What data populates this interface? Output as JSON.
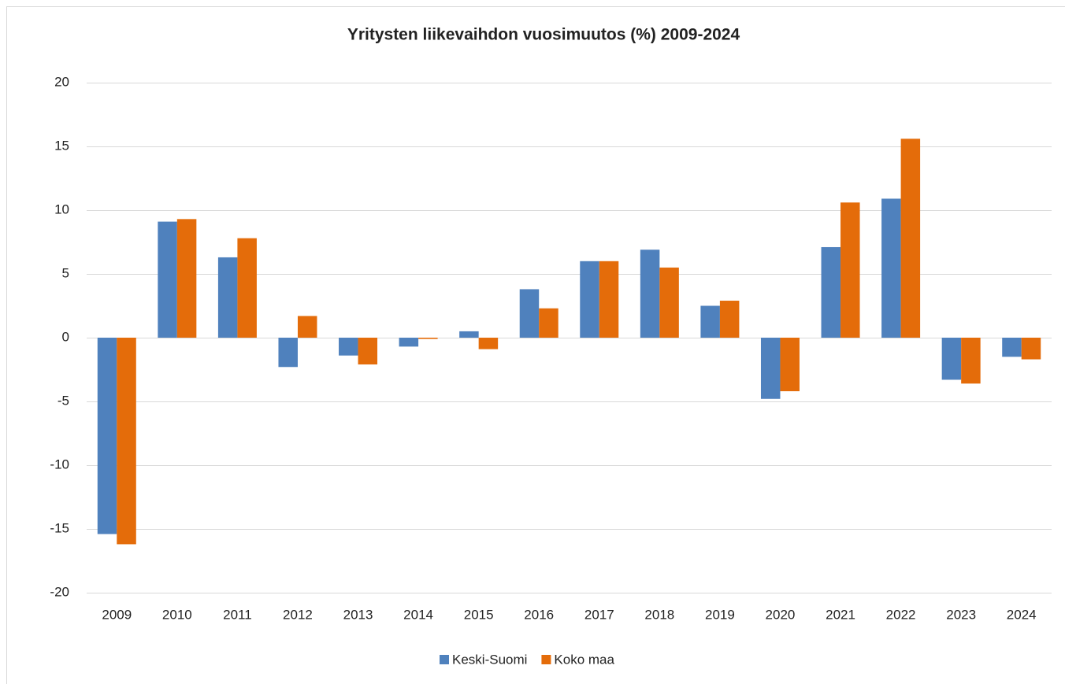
{
  "chart_data": {
    "type": "bar",
    "title": "Yritysten liikevaihdon vuosimuutos (%) 2009-2024",
    "categories": [
      "2009",
      "2010",
      "2011",
      "2012",
      "2013",
      "2014",
      "2015",
      "2016",
      "2017",
      "2018",
      "2019",
      "2020",
      "2021",
      "2022",
      "2023",
      "2024"
    ],
    "series": [
      {
        "name": "Keski-Suomi",
        "color": "#4f81bd",
        "values": [
          -15.4,
          9.1,
          6.3,
          -2.3,
          -1.4,
          -0.7,
          0.5,
          3.8,
          6.0,
          6.9,
          2.5,
          -4.8,
          7.1,
          10.9,
          -3.3,
          -1.5
        ]
      },
      {
        "name": "Koko maa",
        "color": "#e46c0a",
        "values": [
          -16.2,
          9.3,
          7.8,
          1.7,
          -2.1,
          -0.1,
          -0.9,
          2.3,
          6.0,
          5.5,
          2.9,
          -4.2,
          10.6,
          15.6,
          -3.6,
          -1.7
        ]
      }
    ],
    "ylim": [
      -20,
      20
    ],
    "yticks": [
      -20,
      -15,
      -10,
      -5,
      0,
      5,
      10,
      15,
      20
    ],
    "grid": true,
    "legend": "bottom"
  }
}
